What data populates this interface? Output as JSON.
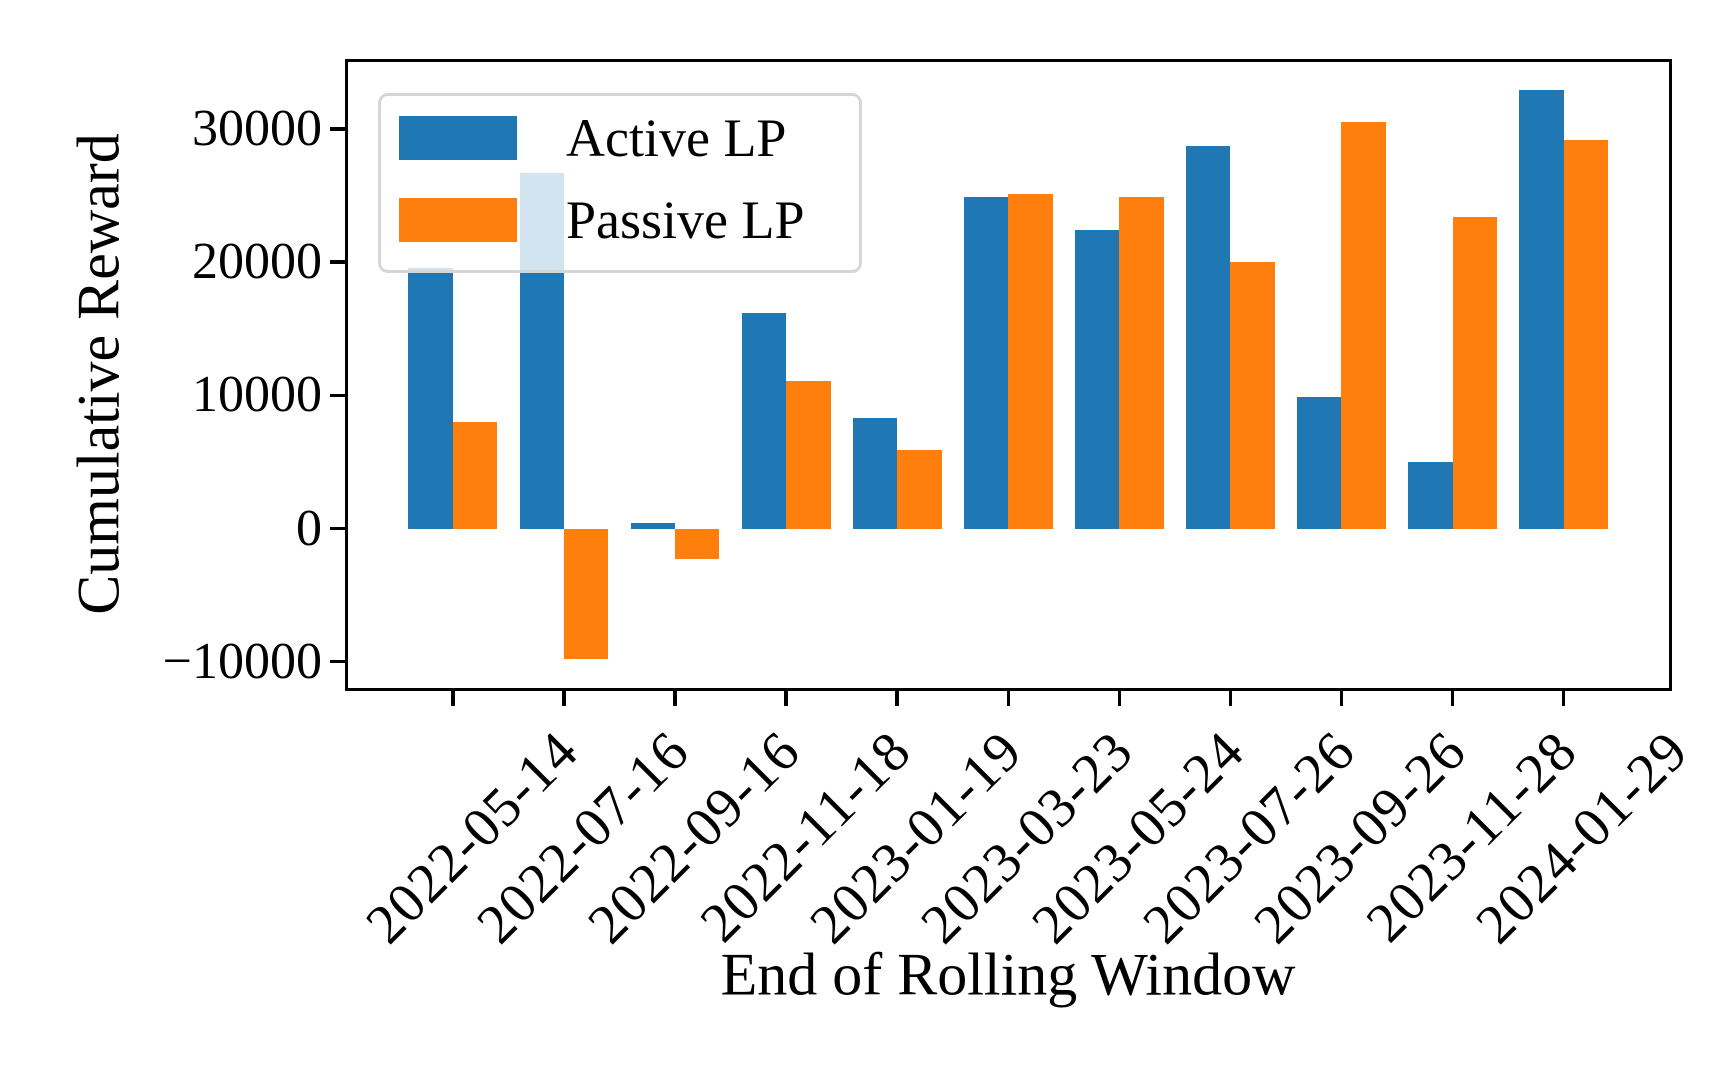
{
  "chart_data": {
    "type": "bar",
    "title": "",
    "xlabel": "End of Rolling Window",
    "ylabel": "Cumulative Reward",
    "categories": [
      "2022-05-14",
      "2022-07-16",
      "2022-09-16",
      "2022-11-18",
      "2023-01-19",
      "2023-03-23",
      "2023-05-24",
      "2023-07-26",
      "2023-09-26",
      "2023-11-28",
      "2024-01-29"
    ],
    "series": [
      {
        "name": "Active LP",
        "color": "#1f77b4",
        "values": [
          19600,
          26700,
          400,
          16200,
          8300,
          24900,
          22400,
          28700,
          9900,
          5000,
          32900
        ]
      },
      {
        "name": "Passive LP",
        "color": "#ff7f0e",
        "values": [
          8000,
          -9800,
          -2300,
          11100,
          5900,
          25100,
          24900,
          20000,
          30500,
          23400,
          29200
        ]
      }
    ],
    "ylim": [
      -11900,
      35000
    ],
    "yticks": [
      -10000,
      0,
      10000,
      20000,
      30000
    ],
    "grid": false,
    "legend_position": "upper left",
    "bar_width": 0.4,
    "x_tick_rotation_deg": 45,
    "axis_color": "#000000",
    "legend_border_color": "#d6d6d6",
    "background_color": "#ffffff"
  }
}
